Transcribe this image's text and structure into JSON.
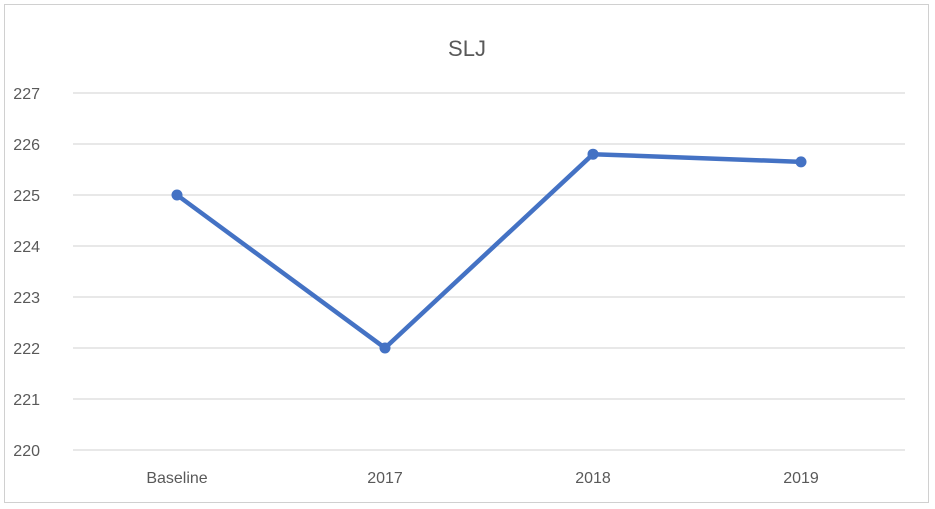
{
  "chart_data": {
    "type": "line",
    "title": "SLJ",
    "xlabel": "",
    "ylabel": "",
    "categories": [
      "Baseline",
      "2017",
      "2018",
      "2019"
    ],
    "y_ticks": [
      "220",
      "221",
      "222",
      "223",
      "224",
      "225",
      "226",
      "227"
    ],
    "ylim": [
      220,
      227
    ],
    "grid": true,
    "legend": "none",
    "series": [
      {
        "values": [
          225.0,
          222.0,
          225.8,
          225.65
        ],
        "color": "#4472c4"
      }
    ]
  }
}
